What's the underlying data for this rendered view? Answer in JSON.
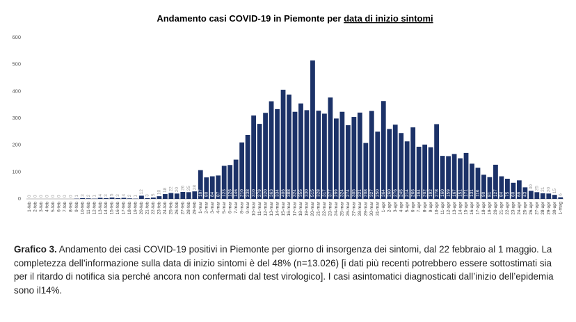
{
  "chart_data": {
    "type": "bar",
    "title": "Andamento casi COVID-19 in Piemonte per ",
    "title_underlined": "data di inizio sintomi",
    "categories": [
      "1-feb",
      "2-feb",
      "3-feb",
      "4-feb",
      "5-feb",
      "6-feb",
      "7-feb",
      "8-feb",
      "9-feb",
      "10-feb",
      "11-feb",
      "12-feb",
      "13-feb",
      "14-feb",
      "15-feb",
      "16-feb",
      "17-feb",
      "18-feb",
      "19-feb",
      "20-feb",
      "21-feb",
      "22-feb",
      "23-feb",
      "24-feb",
      "25-feb",
      "26-feb",
      "27-feb",
      "28-feb",
      "29-feb",
      "1-mar",
      "2-mar",
      "3-mar",
      "4-mar",
      "5-mar",
      "6-mar",
      "7-mar",
      "8-mar",
      "9-mar",
      "10-mar",
      "11-mar",
      "12-mar",
      "13-mar",
      "14-mar",
      "15-mar",
      "16-mar",
      "17-mar",
      "18-mar",
      "19-mar",
      "20-mar",
      "21-mar",
      "22-mar",
      "23-mar",
      "24-mar",
      "25-mar",
      "26-mar",
      "27-mar",
      "28-mar",
      "29-mar",
      "30-mar",
      "31-mar",
      "1-apr",
      "2-apr",
      "3-apr",
      "4-apr",
      "5-apr",
      "6-apr",
      "7-apr",
      "8-apr",
      "9-apr",
      "10-apr",
      "11-apr",
      "12-apr",
      "13-apr",
      "14-apr",
      "15-apr",
      "16-apr",
      "17-apr",
      "18-apr",
      "19-apr",
      "20-apr",
      "21-apr",
      "22-apr",
      "23-apr",
      "24-apr",
      "25-apr",
      "26-apr",
      "27-apr",
      "28-apr",
      "29-apr",
      "30-apr",
      "1-mag"
    ],
    "values": [
      0,
      0,
      0,
      0,
      0,
      0,
      0,
      0,
      1,
      3,
      2,
      1,
      4,
      3,
      5,
      3,
      4,
      2,
      1,
      12,
      3,
      5,
      10,
      18,
      22,
      20,
      26,
      25,
      28,
      107,
      80,
      84,
      87,
      123,
      126,
      146,
      210,
      238,
      310,
      279,
      320,
      363,
      334,
      406,
      388,
      324,
      355,
      330,
      515,
      328,
      317,
      377,
      299,
      324,
      274,
      305,
      321,
      208,
      327,
      250,
      364,
      260,
      276,
      245,
      214,
      266,
      194,
      202,
      192,
      278,
      160,
      159,
      167,
      151,
      171,
      131,
      116,
      90,
      81,
      127,
      84,
      75,
      60,
      69,
      43,
      30,
      25,
      21,
      20,
      15,
      6
    ],
    "color": "#1c3268",
    "ylim": [
      0,
      600
    ],
    "yticks": [
      0,
      100,
      200,
      300,
      400,
      500,
      600
    ],
    "grid": false,
    "caption_label": "Grafico 3.",
    "caption": " Andamento dei casi COVID-19 positivi in Piemonte per giorno di insorgenza dei sintomi, dal 22 febbraio al 1 maggio. La completezza dell’informazione sulla data di inizio sintomi è del 48% (n=13.026) [i dati più recenti potrebbero essere sottostimati sia per il ritardo di notifica sia perché ancora non confermati dal test virologico]. I casi asintomatici diagnosticati dall’inizio dell’epidemia sono il14%."
  }
}
